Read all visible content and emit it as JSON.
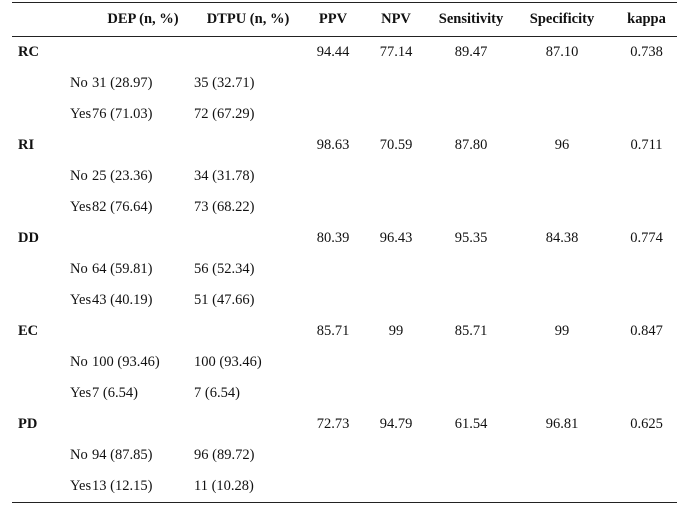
{
  "header": {
    "col_dep": "DEP (n, %)",
    "col_dtpu": "DTPU (n, %)",
    "col_ppv": "PPV",
    "col_npv": "NPV",
    "col_sensitivity": "Sensitivity",
    "col_specificity": "Specificity",
    "col_kappa": "kappa"
  },
  "groups": [
    {
      "label": "RC",
      "ppv": "94.44",
      "npv": "77.14",
      "sensitivity": "89.47",
      "specificity": "87.10",
      "kappa": "0.738",
      "rows": [
        {
          "label": "No",
          "dep": "31 (28.97)",
          "dtpu": "35 (32.71)"
        },
        {
          "label": "Yes",
          "dep": "76 (71.03)",
          "dtpu": "72 (67.29)"
        }
      ]
    },
    {
      "label": "RI",
      "ppv": "98.63",
      "npv": "70.59",
      "sensitivity": "87.80",
      "specificity": "96",
      "kappa": "0.711",
      "rows": [
        {
          "label": "No",
          "dep": "25 (23.36)",
          "dtpu": "34 (31.78)"
        },
        {
          "label": "Yes",
          "dep": "82 (76.64)",
          "dtpu": "73 (68.22)"
        }
      ]
    },
    {
      "label": "DD",
      "ppv": "80.39",
      "npv": "96.43",
      "sensitivity": "95.35",
      "specificity": "84.38",
      "kappa": "0.774",
      "rows": [
        {
          "label": "No",
          "dep": "64 (59.81)",
          "dtpu": "56 (52.34)"
        },
        {
          "label": "Yes",
          "dep": "43 (40.19)",
          "dtpu": "51 (47.66)"
        }
      ]
    },
    {
      "label": "EC",
      "ppv": "85.71",
      "npv": "99",
      "sensitivity": "85.71",
      "specificity": "99",
      "kappa": "0.847",
      "rows": [
        {
          "label": "No",
          "dep": "100 (93.46)",
          "dtpu": "100 (93.46)"
        },
        {
          "label": "Yes",
          "dep": "7 (6.54)",
          "dtpu": "7 (6.54)"
        }
      ]
    },
    {
      "label": "PD",
      "ppv": "72.73",
      "npv": "94.79",
      "sensitivity": "61.54",
      "specificity": "96.81",
      "kappa": "0.625",
      "rows": [
        {
          "label": "No",
          "dep": "94 (87.85)",
          "dtpu": "96 (89.72)"
        },
        {
          "label": "Yes",
          "dep": "13 (12.15)",
          "dtpu": "11 (10.28)"
        }
      ]
    }
  ]
}
